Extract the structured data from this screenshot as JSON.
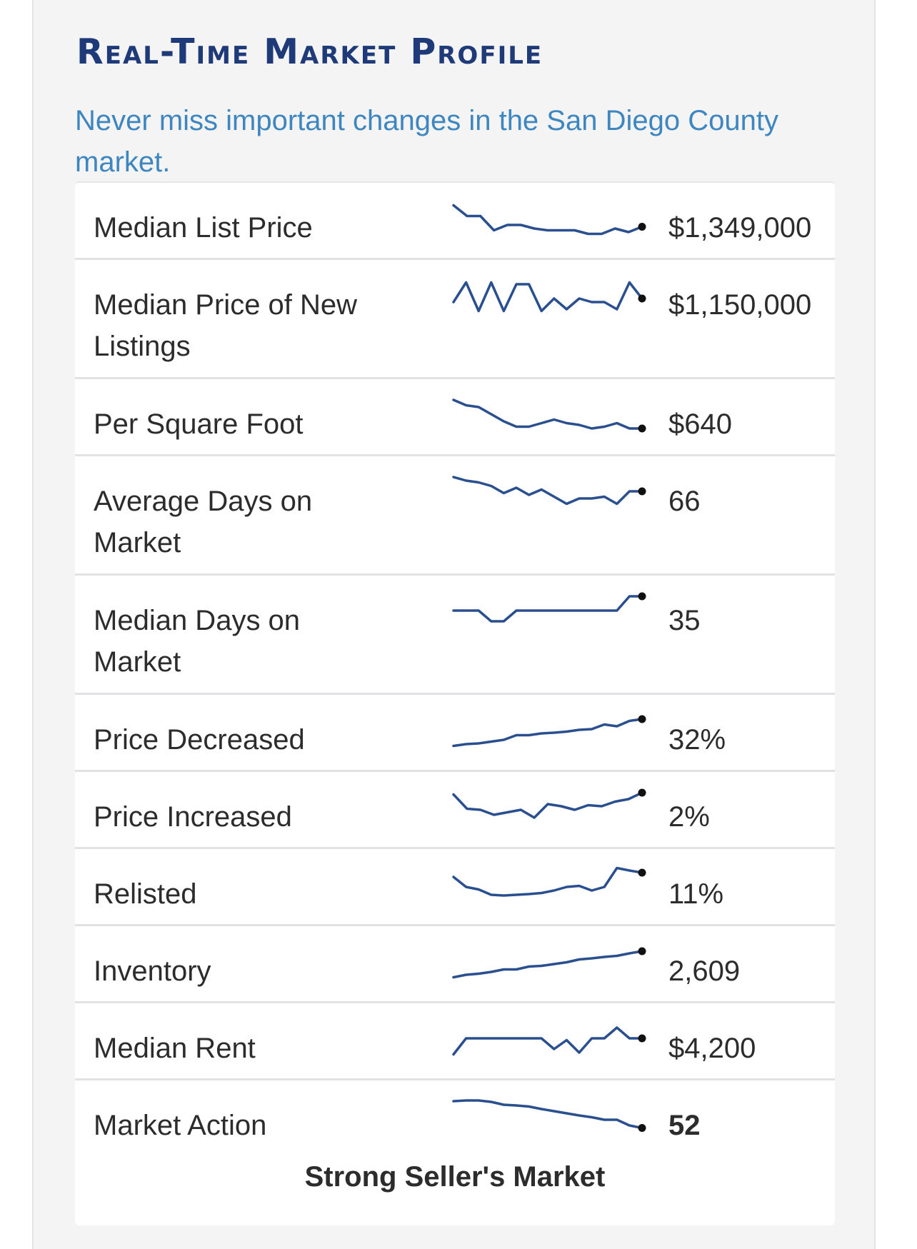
{
  "header": {
    "title": "Real-Time Market Profile",
    "subtitle": "Never miss important changes in the San Diego County market."
  },
  "metrics": [
    {
      "label": "Median List Price",
      "value": "$1,349,000",
      "trend": [
        0.85,
        0.55,
        0.55,
        0.15,
        0.3,
        0.3,
        0.2,
        0.15,
        0.15,
        0.15,
        0.05,
        0.05,
        0.2,
        0.1,
        0.25
      ]
    },
    {
      "label": "Median Price of New Listings",
      "value": "$1,150,000",
      "trend": [
        0.3,
        0.85,
        0.05,
        0.85,
        0.05,
        0.8,
        0.8,
        0.05,
        0.4,
        0.1,
        0.4,
        0.3,
        0.3,
        0.1,
        0.85,
        0.4
      ]
    },
    {
      "label": "Per Square Foot",
      "value": "$640",
      "trend": [
        0.9,
        0.75,
        0.7,
        0.5,
        0.3,
        0.15,
        0.15,
        0.25,
        0.35,
        0.25,
        0.2,
        0.1,
        0.15,
        0.25,
        0.1,
        0.1
      ]
    },
    {
      "label": "Average Days on Market",
      "value": "66",
      "trend": [
        0.9,
        0.8,
        0.75,
        0.65,
        0.45,
        0.6,
        0.4,
        0.55,
        0.35,
        0.15,
        0.3,
        0.3,
        0.35,
        0.15,
        0.5,
        0.5
      ]
    },
    {
      "label": "Median Days on Market",
      "value": "35",
      "trend": [
        0.5,
        0.5,
        0.5,
        0.2,
        0.2,
        0.5,
        0.5,
        0.5,
        0.5,
        0.5,
        0.5,
        0.5,
        0.5,
        0.5,
        0.9,
        0.9
      ]
    },
    {
      "label": "Price Decreased",
      "value": "32%",
      "trend": [
        0.05,
        0.1,
        0.12,
        0.17,
        0.22,
        0.35,
        0.35,
        0.4,
        0.42,
        0.45,
        0.5,
        0.52,
        0.65,
        0.6,
        0.75,
        0.8
      ]
    },
    {
      "label": "Price Increased",
      "value": "2%",
      "trend": [
        0.85,
        0.45,
        0.42,
        0.28,
        0.35,
        0.42,
        0.2,
        0.58,
        0.52,
        0.42,
        0.55,
        0.52,
        0.65,
        0.72,
        0.9
      ]
    },
    {
      "label": "Relisted",
      "value": "11%",
      "trend": [
        0.7,
        0.42,
        0.35,
        0.2,
        0.18,
        0.2,
        0.22,
        0.25,
        0.32,
        0.42,
        0.45,
        0.32,
        0.42,
        0.95,
        0.88,
        0.82
      ]
    },
    {
      "label": "Inventory",
      "value": "2,609",
      "trend": [
        0.05,
        0.12,
        0.15,
        0.2,
        0.27,
        0.27,
        0.35,
        0.37,
        0.42,
        0.47,
        0.55,
        0.58,
        0.62,
        0.65,
        0.72,
        0.78
      ]
    },
    {
      "label": "Median Rent",
      "value": "$4,200",
      "trend": [
        0.05,
        0.5,
        0.5,
        0.5,
        0.5,
        0.5,
        0.5,
        0.5,
        0.2,
        0.45,
        0.1,
        0.5,
        0.5,
        0.8,
        0.5,
        0.5
      ]
    },
    {
      "label": "Market Action",
      "value": "52",
      "trend": [
        0.9,
        0.92,
        0.92,
        0.88,
        0.8,
        0.78,
        0.75,
        0.68,
        0.62,
        0.56,
        0.5,
        0.45,
        0.38,
        0.38,
        0.22,
        0.15
      ]
    }
  ],
  "footer": {
    "market_label": "Strong Seller's Market"
  }
}
